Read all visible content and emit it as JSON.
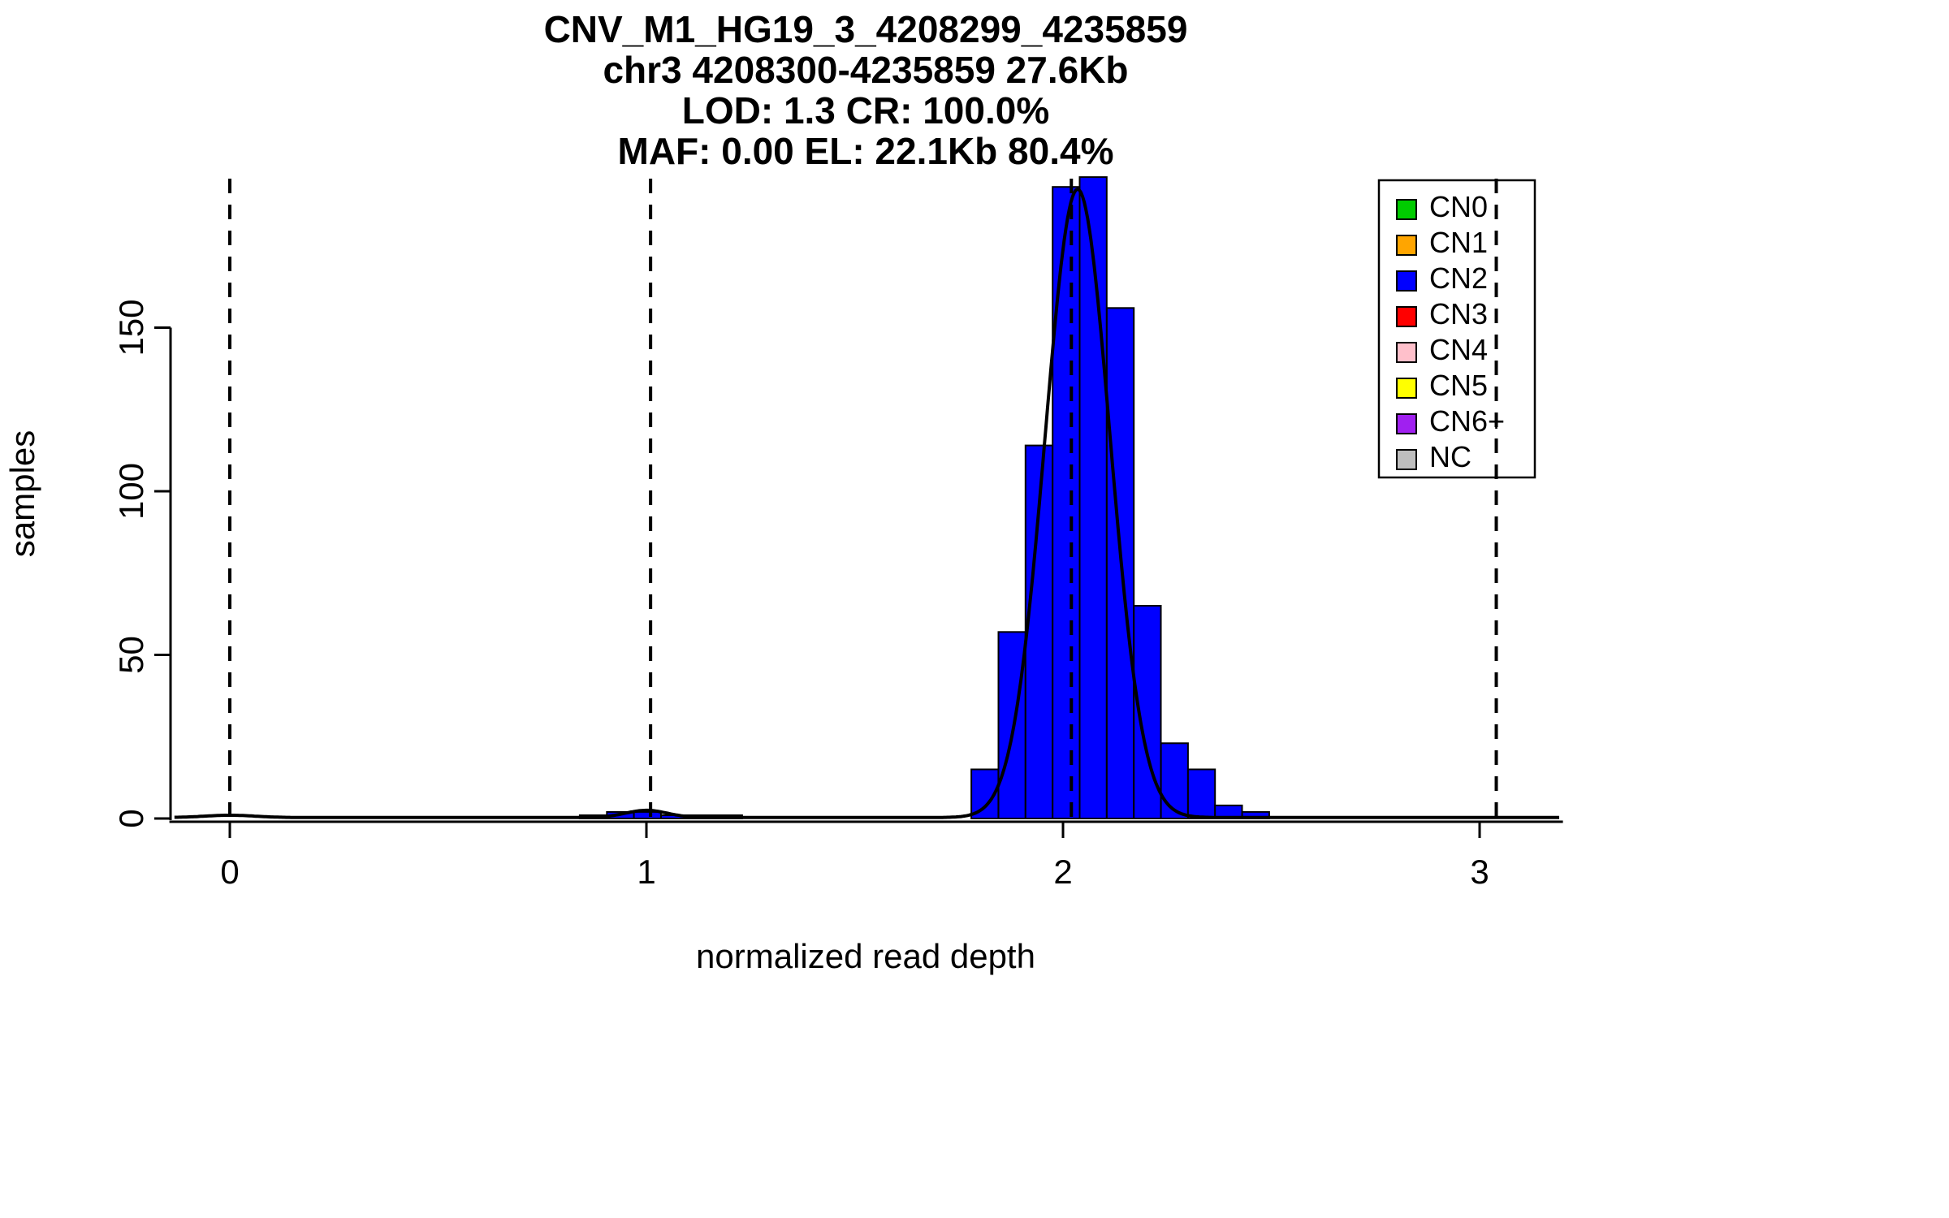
{
  "chart_data": {
    "type": "bar",
    "title_lines": [
      "CNV_M1_HG19_3_4208299_4235859",
      "chr3 4208300-4235859 27.6Kb",
      "LOD: 1.3 CR: 100.0%",
      "MAF: 0.00 EL: 22.1Kb 80.4%"
    ],
    "xlabel": "normalized read depth",
    "ylabel": "samples",
    "x_ticks": [
      0,
      1,
      2,
      3
    ],
    "y_ticks": [
      0,
      50,
      100,
      150
    ],
    "xlim": [
      -0.145,
      3.2
    ],
    "ylim": [
      0,
      196
    ],
    "grid": false,
    "legend_position": "top-right",
    "bar_color": "#0000FF",
    "bar_edge_color": "#000000",
    "axis_color": "#000000",
    "bins": [
      {
        "x0": 0.84,
        "x1": 0.905,
        "h": 1
      },
      {
        "x0": 0.905,
        "x1": 0.97,
        "h": 2
      },
      {
        "x0": 0.97,
        "x1": 1.035,
        "h": 2
      },
      {
        "x0": 1.035,
        "x1": 1.1,
        "h": 1
      },
      {
        "x0": 1.1,
        "x1": 1.165,
        "h": 1
      },
      {
        "x0": 1.165,
        "x1": 1.23,
        "h": 1
      },
      {
        "x0": 1.78,
        "x1": 1.845,
        "h": 15
      },
      {
        "x0": 1.845,
        "x1": 1.91,
        "h": 57
      },
      {
        "x0": 1.91,
        "x1": 1.975,
        "h": 114
      },
      {
        "x0": 1.975,
        "x1": 2.04,
        "h": 193
      },
      {
        "x0": 2.04,
        "x1": 2.105,
        "h": 196
      },
      {
        "x0": 2.105,
        "x1": 2.17,
        "h": 156
      },
      {
        "x0": 2.17,
        "x1": 2.235,
        "h": 65
      },
      {
        "x0": 2.235,
        "x1": 2.3,
        "h": 23
      },
      {
        "x0": 2.3,
        "x1": 2.365,
        "h": 15
      },
      {
        "x0": 2.365,
        "x1": 2.43,
        "h": 4
      },
      {
        "x0": 2.43,
        "x1": 2.495,
        "h": 2
      }
    ],
    "dashed_lines_x": [
      0,
      1.01,
      2.02,
      3.04
    ],
    "curve": {
      "color": "#000000",
      "baseline": 0.3,
      "components": [
        {
          "mu": 2.035,
          "sigma": 0.078,
          "peak": 192
        },
        {
          "mu": 1.0,
          "sigma": 0.05,
          "peak": 2.2
        },
        {
          "mu": 0.0,
          "sigma": 0.06,
          "peak": 0.7
        }
      ]
    },
    "legend": {
      "items": [
        {
          "label": "CN0",
          "color": "#00CC00"
        },
        {
          "label": "CN1",
          "color": "#FFA500"
        },
        {
          "label": "CN2",
          "color": "#0000FF"
        },
        {
          "label": "CN3",
          "color": "#FF0000"
        },
        {
          "label": "CN4",
          "color": "#FFC0CB"
        },
        {
          "label": "CN5",
          "color": "#FFFF00"
        },
        {
          "label": "CN6+",
          "color": "#A020F0"
        },
        {
          "label": "NC",
          "color": "#BEBEBE"
        }
      ]
    }
  }
}
